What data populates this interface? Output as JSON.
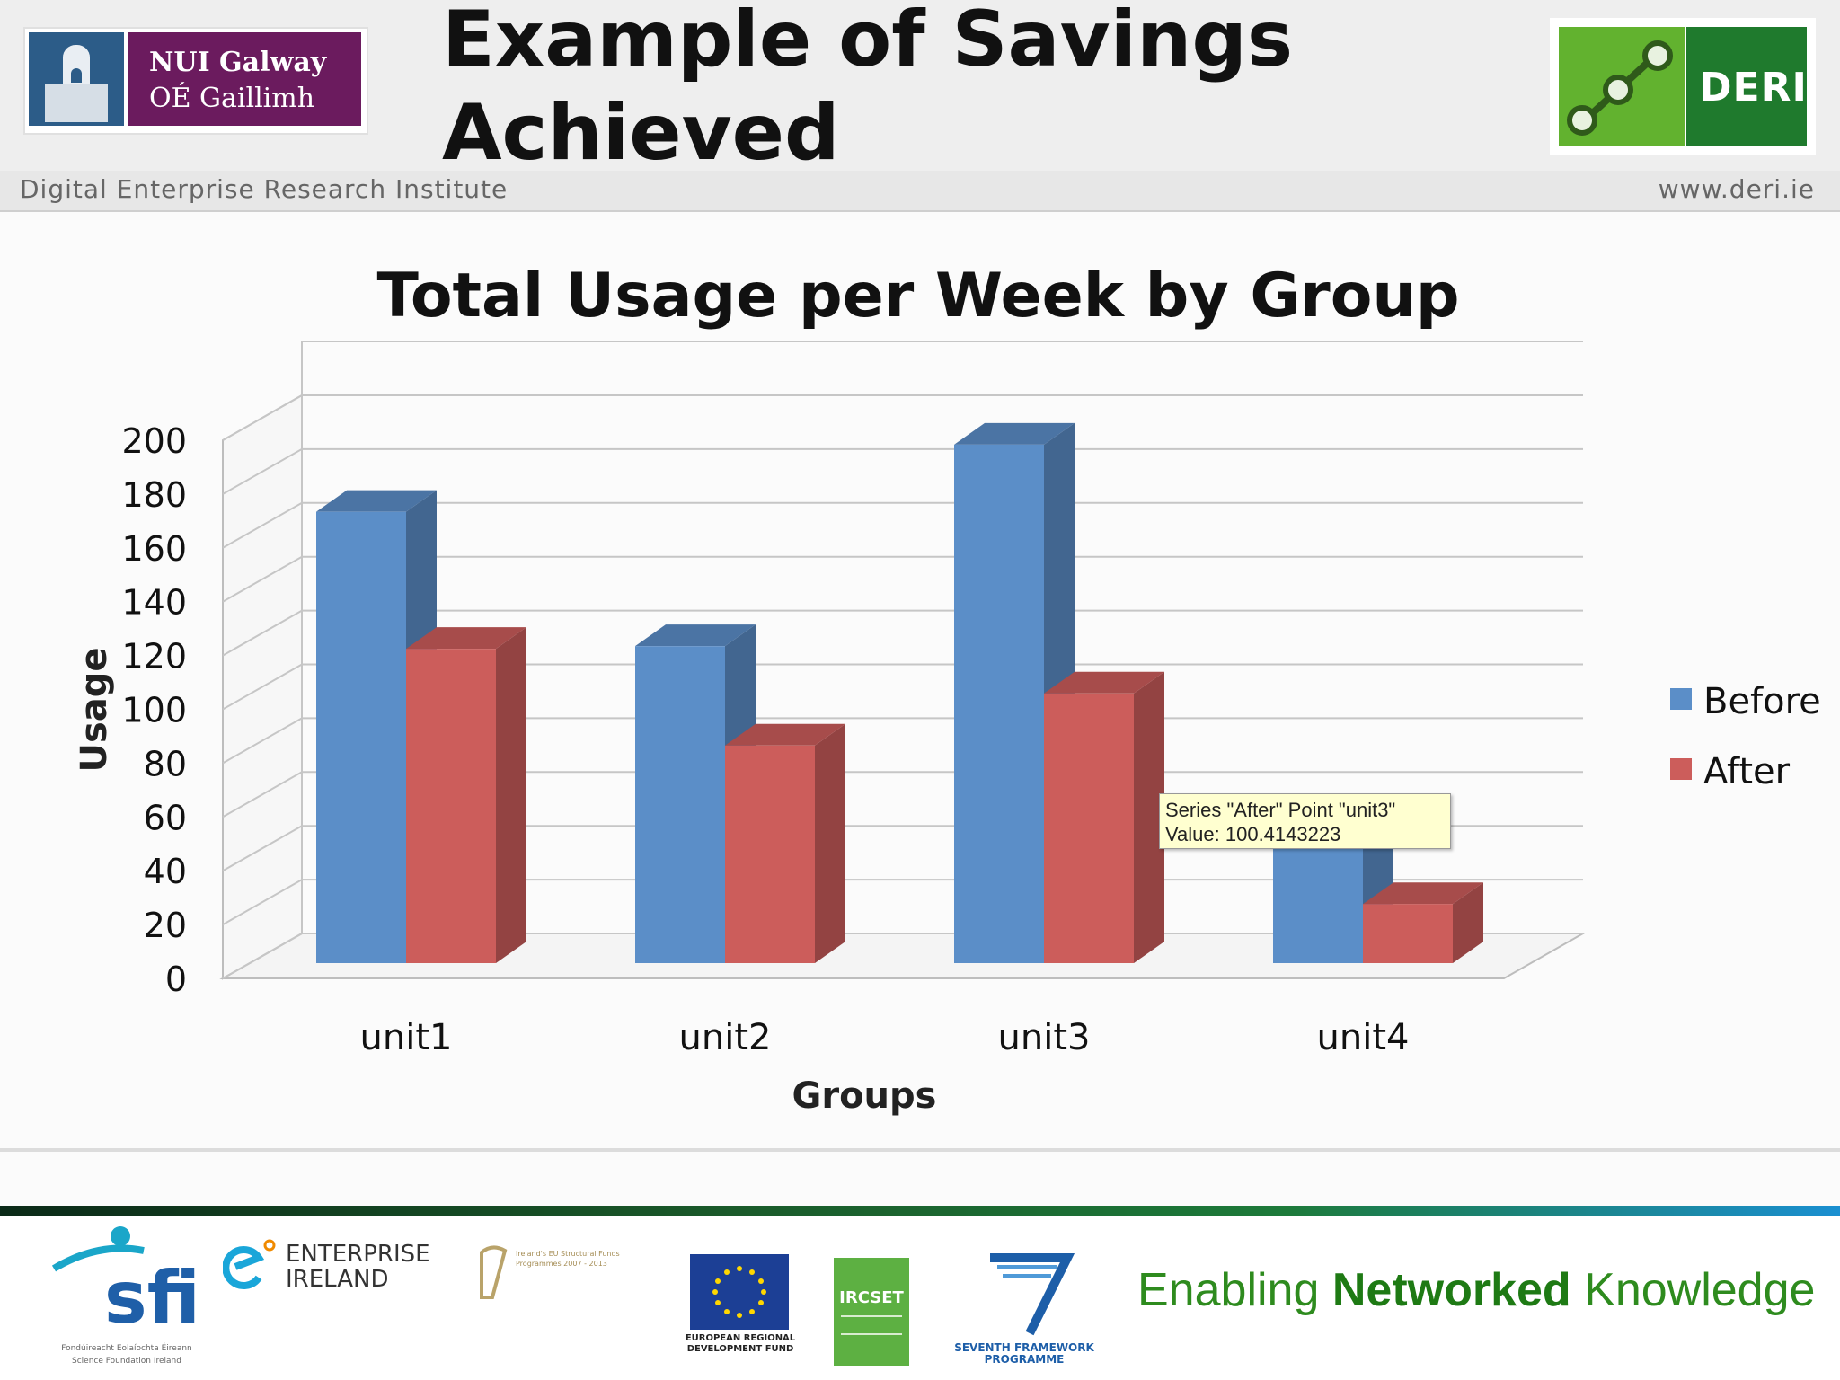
{
  "header": {
    "title_line1": "Example of Savings",
    "title_line2": "Achieved",
    "nui_logo_line1": "NUI Galway",
    "nui_logo_line2": "OÉ Gaillimh",
    "deri_logo_text": "DERI",
    "institute": "Digital Enterprise Research Institute",
    "url": "www.deri.ie"
  },
  "chart_data": {
    "type": "bar",
    "title": "Total Usage per Week by Group",
    "xlabel": "Groups",
    "ylabel": "Usage",
    "categories": [
      "unit1",
      "unit2",
      "unit3",
      "unit4"
    ],
    "series": [
      {
        "name": "Before",
        "values": [
          168,
          118,
          193,
          45
        ],
        "color": "#5b8ec8"
      },
      {
        "name": "After",
        "values": [
          117,
          81,
          100.4,
          22
        ],
        "color": "#cc5d5b"
      }
    ],
    "ylim": [
      0,
      200
    ],
    "yticks": [
      "0",
      "20",
      "40",
      "60",
      "80",
      "100",
      "120",
      "140",
      "160",
      "180",
      "200"
    ],
    "grid": true,
    "legend_position": "right",
    "style": "3d"
  },
  "tooltip": {
    "line1": "Series \"After\" Point \"unit3\"",
    "line2": "Value: 100.4143223"
  },
  "footer": {
    "sfi_text": "sfi",
    "sfi_sub1": "Fondúireacht Eolaíochta Éireann",
    "sfi_sub2": "Science Foundation Ireland",
    "ei_line1": "ENTERPRISE",
    "ei_line2": "IRELAND",
    "structural_funds_text": "Ireland's EU Structural Funds Programmes 2007 - 2013",
    "erdf_line1": "EUROPEAN REGIONAL",
    "erdf_line2": "DEVELOPMENT FUND",
    "ircset_text": "IRCSET",
    "fp7_line1": "SEVENTH FRAMEWORK",
    "fp7_line2": "PROGRAMME",
    "tagline_pre": "Enabling ",
    "tagline_bold": "Networked",
    "tagline_post": " Knowledge"
  }
}
